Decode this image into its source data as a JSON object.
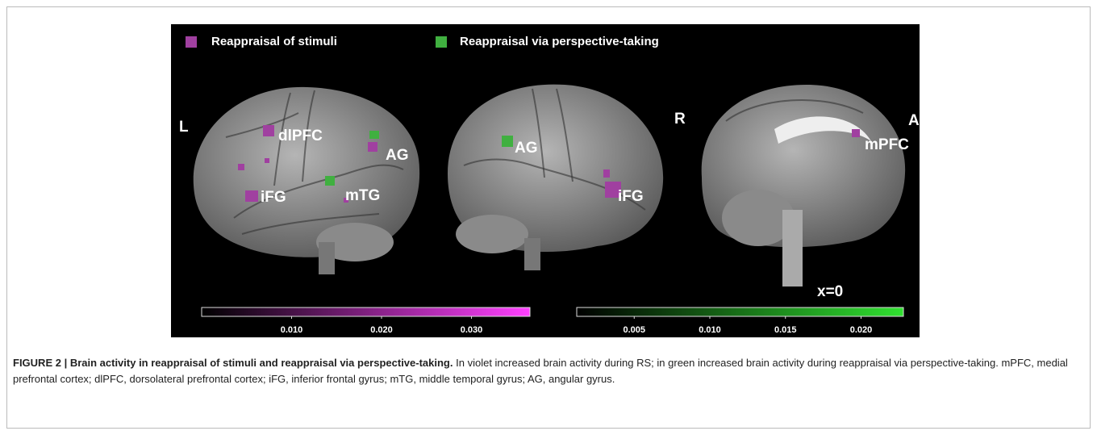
{
  "figure": {
    "legend": [
      "Reappraisal of stimuli",
      "Reappraisal via perspective-taking"
    ],
    "labels": {
      "left_view": "L",
      "right_view": "R",
      "medial_view": "A",
      "slice": "x=0"
    },
    "regions": {
      "left": [
        "dlPFC",
        "AG",
        "iFG",
        "mTG"
      ],
      "right": [
        "AG",
        "iFG"
      ],
      "medial": [
        "mPFC"
      ]
    },
    "colorbars": [
      {
        "color": "#ff40ff",
        "lim": [
          0,
          0.0365
        ],
        "ticks": [
          {
            "value": 0.01,
            "label": "0.010"
          },
          {
            "value": 0.02,
            "label": "0.020"
          },
          {
            "value": 0.03,
            "label": "0.030"
          }
        ]
      },
      {
        "color": "#30e030",
        "lim": [
          0.0012,
          0.0228
        ],
        "ticks": [
          {
            "value": 0.005,
            "label": "0.005"
          },
          {
            "value": 0.01,
            "label": "0.010"
          },
          {
            "value": 0.015,
            "label": "0.015"
          },
          {
            "value": 0.02,
            "label": "0.020"
          }
        ]
      }
    ]
  },
  "caption": {
    "label": "FIGURE 2 | Brain activity in reappraisal of stimuli and reappraisal via perspective-taking.",
    "text": "In violet increased brain activity during RS; in green increased brain activity during reappraisal via perspective-taking. mPFC, medial prefrontal cortex; dlPFC, dorsolateral prefrontal cortex; iFG, inferior frontal gyrus; mTG, middle temporal gyrus; AG, angular gyrus."
  }
}
